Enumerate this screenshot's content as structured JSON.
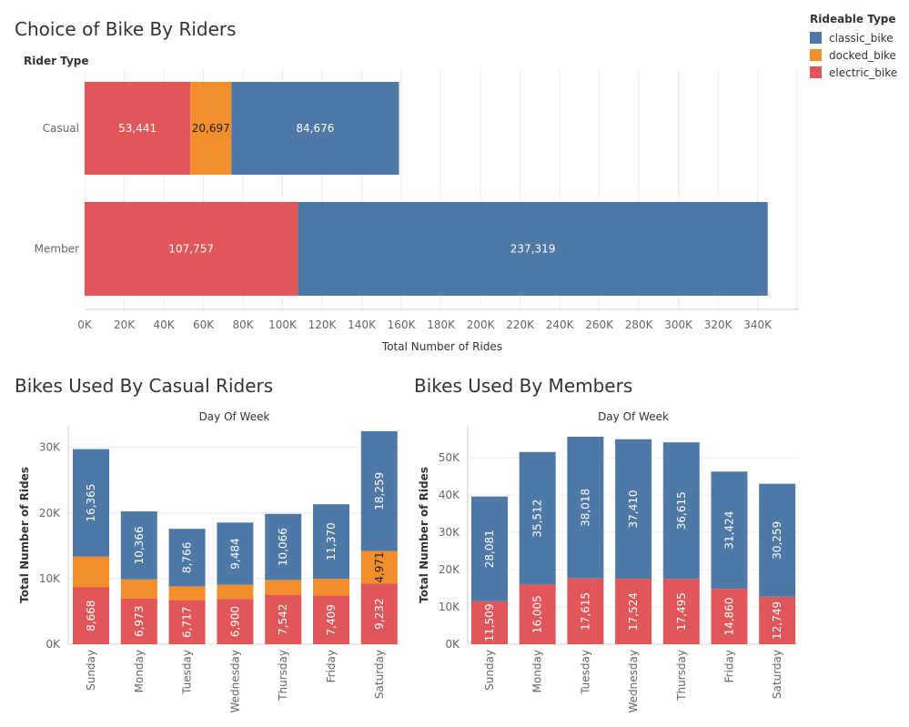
{
  "colors": {
    "classic_bike": "#4e79a7",
    "docked_bike": "#f28e2b",
    "electric_bike": "#e15759",
    "grid": "#ececec",
    "text": "#666666"
  },
  "legend": {
    "title": "Rideable Type",
    "items": [
      {
        "label": "classic_bike",
        "color": "#4e79a7"
      },
      {
        "label": "docked_bike",
        "color": "#f28e2b"
      },
      {
        "label": "electric_bike",
        "color": "#e15759"
      }
    ]
  },
  "chart_data": [
    {
      "type": "bar",
      "orientation": "horizontal",
      "stacked": true,
      "title": "Choice of Bike By Riders",
      "ylabel": "Rider Type",
      "xlabel": "Total Number of Rides",
      "categories": [
        "Casual",
        "Member"
      ],
      "xlim": [
        0,
        360000
      ],
      "xticks": [
        0,
        20000,
        40000,
        60000,
        80000,
        100000,
        120000,
        140000,
        160000,
        180000,
        200000,
        220000,
        240000,
        260000,
        280000,
        300000,
        320000,
        340000
      ],
      "xtick_labels": [
        "0K",
        "20K",
        "40K",
        "60K",
        "80K",
        "100K",
        "120K",
        "140K",
        "160K",
        "180K",
        "200K",
        "220K",
        "240K",
        "260K",
        "280K",
        "300K",
        "320K",
        "340K"
      ],
      "series": [
        {
          "name": "electric_bike",
          "values": [
            53441,
            107757
          ],
          "labels": [
            "53,441",
            "107,757"
          ]
        },
        {
          "name": "docked_bike",
          "values": [
            20697,
            0
          ],
          "labels": [
            "20,697",
            ""
          ]
        },
        {
          "name": "classic_bike",
          "values": [
            84676,
            237319
          ],
          "labels": [
            "84,676",
            "237,319"
          ]
        }
      ]
    },
    {
      "type": "bar",
      "orientation": "vertical",
      "stacked": true,
      "title": "Bikes Used By Casual Riders",
      "xlabel": "Day Of Week",
      "ylabel": "Total Number of Rides",
      "categories": [
        "Sunday",
        "Monday",
        "Tuesday",
        "Wednesday",
        "Thursday",
        "Friday",
        "Saturday"
      ],
      "ylim": [
        0,
        33000
      ],
      "yticks": [
        0,
        10000,
        20000,
        30000
      ],
      "ytick_labels": [
        "0K",
        "10K",
        "20K",
        "30K"
      ],
      "series": [
        {
          "name": "electric_bike",
          "values": [
            8668,
            6973,
            6717,
            6900,
            7542,
            7409,
            9232
          ],
          "labels": [
            "8,668",
            "6,973",
            "6,717",
            "6,900",
            "7,542",
            "7,409",
            "9,232"
          ]
        },
        {
          "name": "docked_bike",
          "values": [
            4700,
            2900,
            2100,
            2150,
            2250,
            2550,
            4971
          ],
          "labels": [
            "",
            "",
            "",
            "",
            "",
            "",
            "4,971"
          ]
        },
        {
          "name": "classic_bike",
          "values": [
            16365,
            10366,
            8766,
            9484,
            10066,
            11370,
            18259
          ],
          "labels": [
            "16,365",
            "10,366",
            "8,766",
            "9,484",
            "10,066",
            "11,370",
            "18,259"
          ]
        }
      ]
    },
    {
      "type": "bar",
      "orientation": "vertical",
      "stacked": true,
      "title": "Bikes Used By Members",
      "xlabel": "Day Of Week",
      "ylabel": "Total Number of Rides",
      "categories": [
        "Sunday",
        "Monday",
        "Tuesday",
        "Wednesday",
        "Thursday",
        "Friday",
        "Saturday"
      ],
      "ylim": [
        0,
        58000
      ],
      "yticks": [
        0,
        10000,
        20000,
        30000,
        40000,
        50000
      ],
      "ytick_labels": [
        "0K",
        "10K",
        "20K",
        "30K",
        "40K",
        "50K"
      ],
      "series": [
        {
          "name": "electric_bike",
          "values": [
            11509,
            16005,
            17615,
            17524,
            17495,
            14860,
            12749
          ],
          "labels": [
            "11,509",
            "16,005",
            "17,615",
            "17,524",
            "17,495",
            "14,860",
            "12,749"
          ]
        },
        {
          "name": "classic_bike",
          "values": [
            28081,
            35512,
            38018,
            37410,
            36615,
            31424,
            30259
          ],
          "labels": [
            "28,081",
            "35,512",
            "38,018",
            "37,410",
            "36,615",
            "31,424",
            "30,259"
          ]
        }
      ]
    }
  ]
}
